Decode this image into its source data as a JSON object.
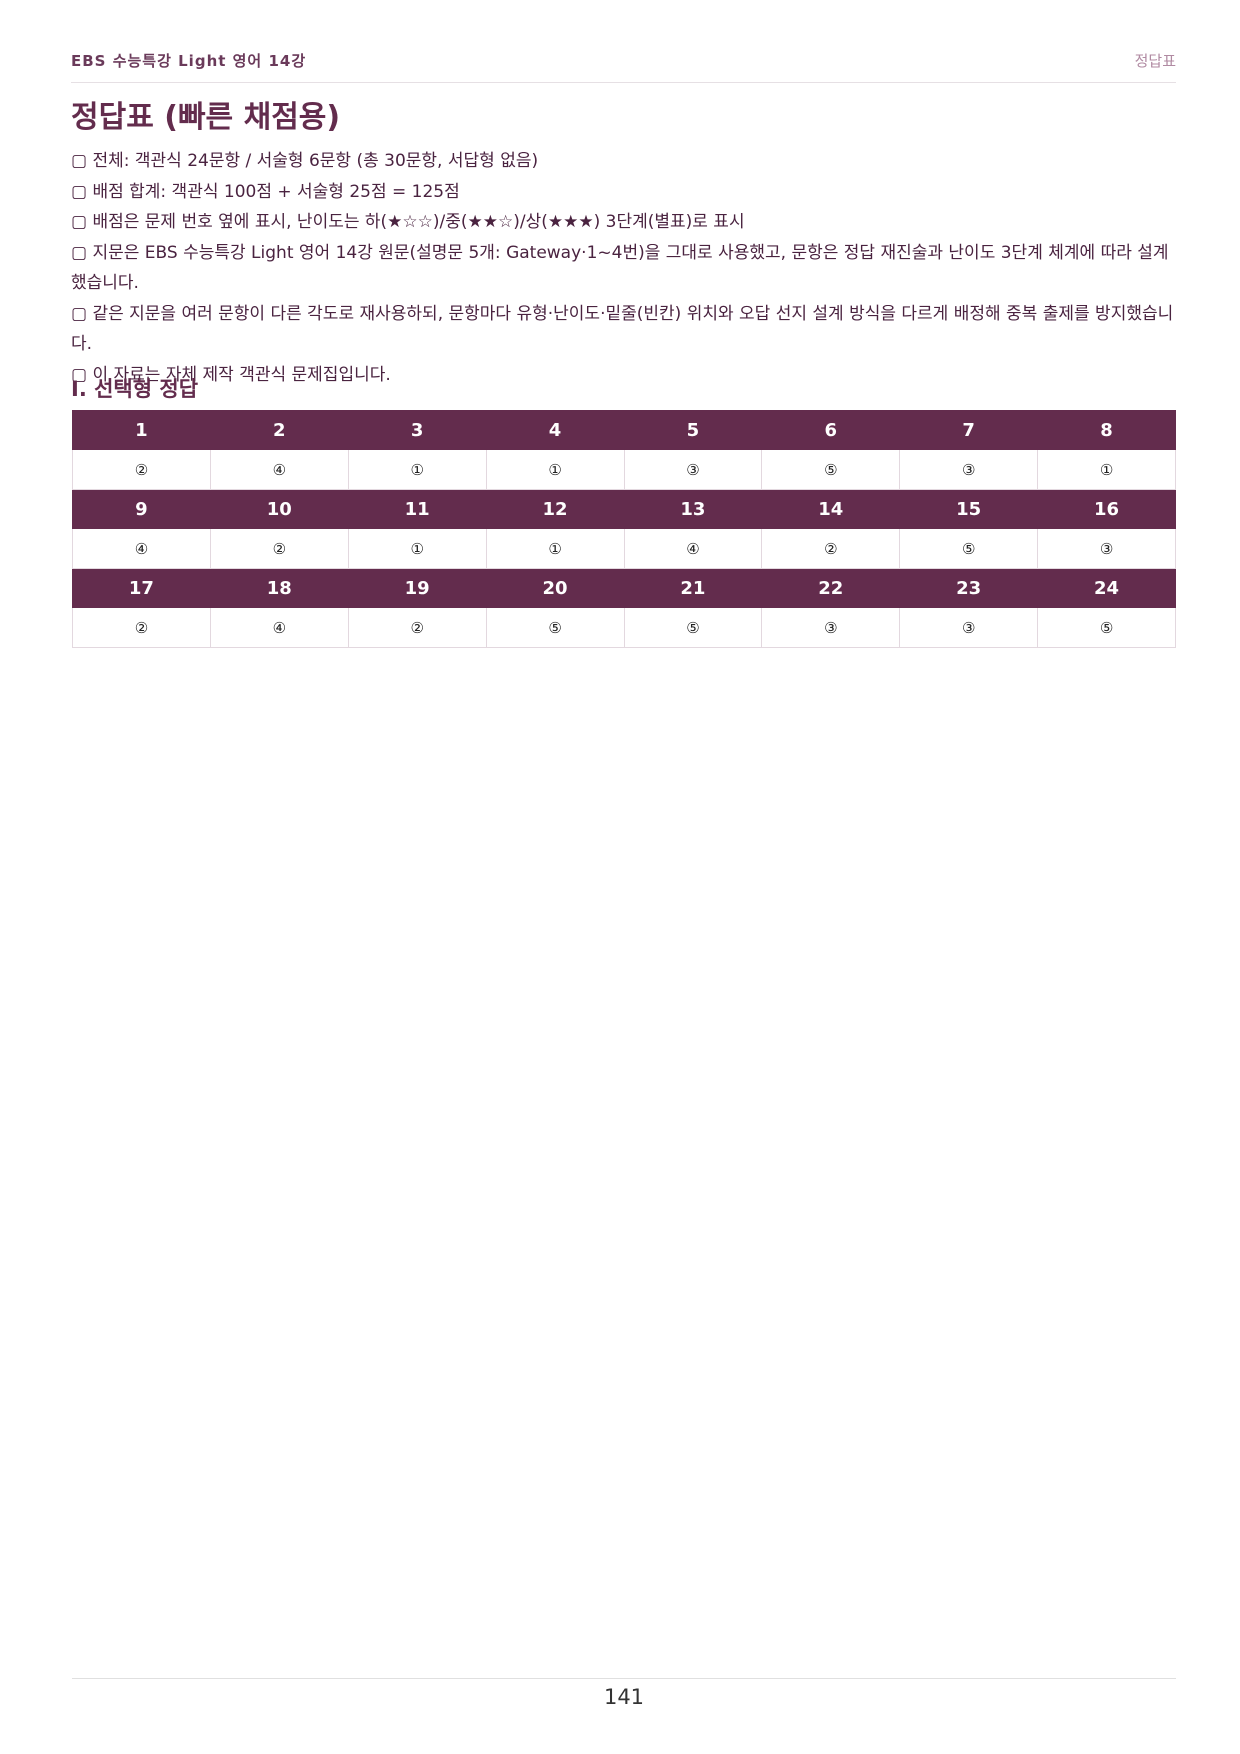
{
  "header": {
    "left": "EBS 수능특강 Light 영어 14강",
    "right": "정답표"
  },
  "title": "정답표 (빠른 채점용)",
  "notes": [
    "▢ 전체: 객관식 24문항 / 서술형 6문항 (총 30문항, 서답형 없음)",
    "▢ 배점 합계: 객관식 100점 + 서술형 25점 = 125점",
    "▢ 배점은 문제 번호 옆에 표시, 난이도는 하(★☆☆)/중(★★☆)/상(★★★) 3단계(별표)로 표시",
    "▢ 지문은 EBS 수능특강 Light 영어 14강 원문(설명문 5개: Gateway·1~4번)을 그대로 사용했고, 문항은 정답 재진술과 난이도 3단계 체계에 따라 설계했습니다.",
    "▢ 같은 지문을 여러 문항이 다른 각도로 재사용하되, 문항마다 유형·난이도·밑줄(빈칸) 위치와 오답 선지 설계 방식을 다르게 배정해 중복 출제를 방지했습니다.",
    "▢ 이 자료는 자체 제작 객관식 문제집입니다."
  ],
  "section": "I. 선택형 정답",
  "answer_table": {
    "blocks": [
      {
        "numbers": [
          1,
          2,
          3,
          4,
          5,
          6,
          7,
          8
        ],
        "answers": [
          "②",
          "④",
          "①",
          "①",
          "③",
          "⑤",
          "③",
          "①"
        ]
      },
      {
        "numbers": [
          9,
          10,
          11,
          12,
          13,
          14,
          15,
          16
        ],
        "answers": [
          "④",
          "②",
          "①",
          "①",
          "④",
          "②",
          "⑤",
          "③"
        ]
      },
      {
        "numbers": [
          17,
          18,
          19,
          20,
          21,
          22,
          23,
          24
        ],
        "answers": [
          "②",
          "④",
          "②",
          "⑤",
          "⑤",
          "③",
          "③",
          "⑤"
        ]
      }
    ]
  },
  "footer": {
    "page_number": 141
  }
}
